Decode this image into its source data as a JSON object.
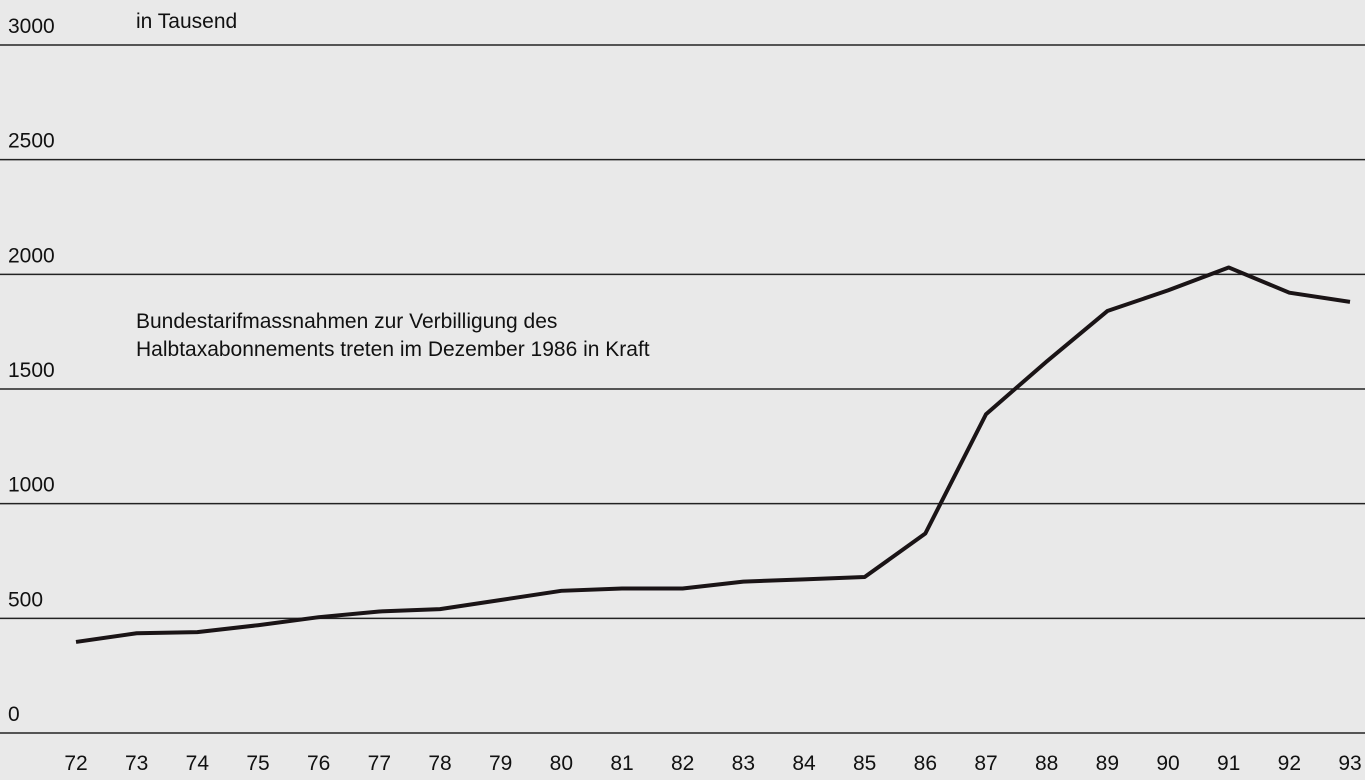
{
  "chart_data": {
    "type": "line",
    "unit_label": "in Tausend",
    "annotation": [
      "Bundestarifmassnahmen zur Verbilligung des",
      "Halbtaxabonnements treten im Dezember 1986 in Kraft"
    ],
    "categories": [
      "72",
      "73",
      "74",
      "75",
      "76",
      "77",
      "78",
      "79",
      "80",
      "81",
      "82",
      "83",
      "84",
      "85",
      "86",
      "87",
      "88",
      "89",
      "90",
      "91",
      "92",
      "93"
    ],
    "series": [
      {
        "color": "#1a1416",
        "values": [
          397,
          435,
          440,
          470,
          505,
          530,
          540,
          580,
          620,
          630,
          630,
          660,
          670,
          680,
          870,
          1390,
          1620,
          1840,
          1930,
          2030,
          1920,
          1880
        ]
      }
    ],
    "ylim": [
      0,
      3000
    ],
    "yticks": [
      0,
      500,
      1000,
      1500,
      2000,
      2500,
      3000
    ],
    "grid": true
  }
}
